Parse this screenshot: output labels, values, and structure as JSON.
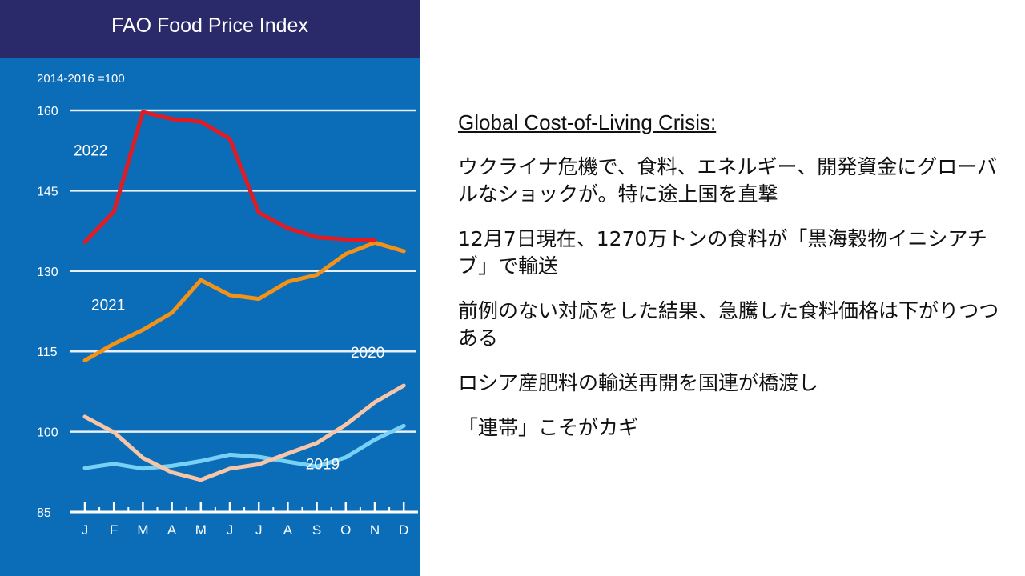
{
  "chart_data": {
    "type": "line",
    "title": "FAO Food Price Index",
    "subtitle": "2014-2016 =100",
    "categories": [
      "J",
      "F",
      "M",
      "A",
      "M",
      "J",
      "J",
      "A",
      "S",
      "O",
      "N",
      "D"
    ],
    "yticks": [
      160,
      145,
      130,
      115,
      100,
      85
    ],
    "ylim": [
      85,
      160
    ],
    "grid": true,
    "series": [
      {
        "name": "2022",
        "color": "#e11b22",
        "values": [
          135.4,
          141.1,
          159.7,
          158.4,
          157.9,
          154.7,
          140.9,
          138.0,
          136.3,
          135.9,
          135.7,
          null
        ]
      },
      {
        "name": "2021",
        "color": "#f39219",
        "values": [
          113.3,
          116.4,
          119.0,
          122.2,
          128.3,
          125.5,
          124.8,
          128.0,
          129.3,
          133.2,
          135.3,
          133.7
        ]
      },
      {
        "name": "2020",
        "color": "#f7c5a8",
        "values": [
          102.8,
          99.9,
          95.1,
          92.4,
          91.0,
          93.1,
          93.9,
          95.9,
          97.9,
          101.3,
          105.5,
          108.6
        ]
      },
      {
        "name": "2019",
        "color": "#78d1f4",
        "values": [
          93.2,
          94.0,
          93.1,
          93.6,
          94.5,
          95.7,
          95.3,
          94.4,
          93.5,
          95.2,
          98.5,
          101.1
        ]
      }
    ],
    "series_labels": [
      "2022",
      "2021",
      "2020",
      "2019"
    ]
  },
  "text": {
    "heading": "Global Cost-of-Living Crisis:",
    "p1": "ウクライナ危機で、食料、エネルギー、開発資金にグローバルなショックが。特に途上国を直撃",
    "p2": "12月7日現在、1270万トンの食料が「黒海穀物イニシアチブ」で輸送",
    "p3": "前例のない対応をした結果、急騰した食料価格は下がりつつある",
    "p4": "ロシア産肥料の輸送再開を国連が橋渡し",
    "p5": "「連帯」こそがカギ"
  }
}
